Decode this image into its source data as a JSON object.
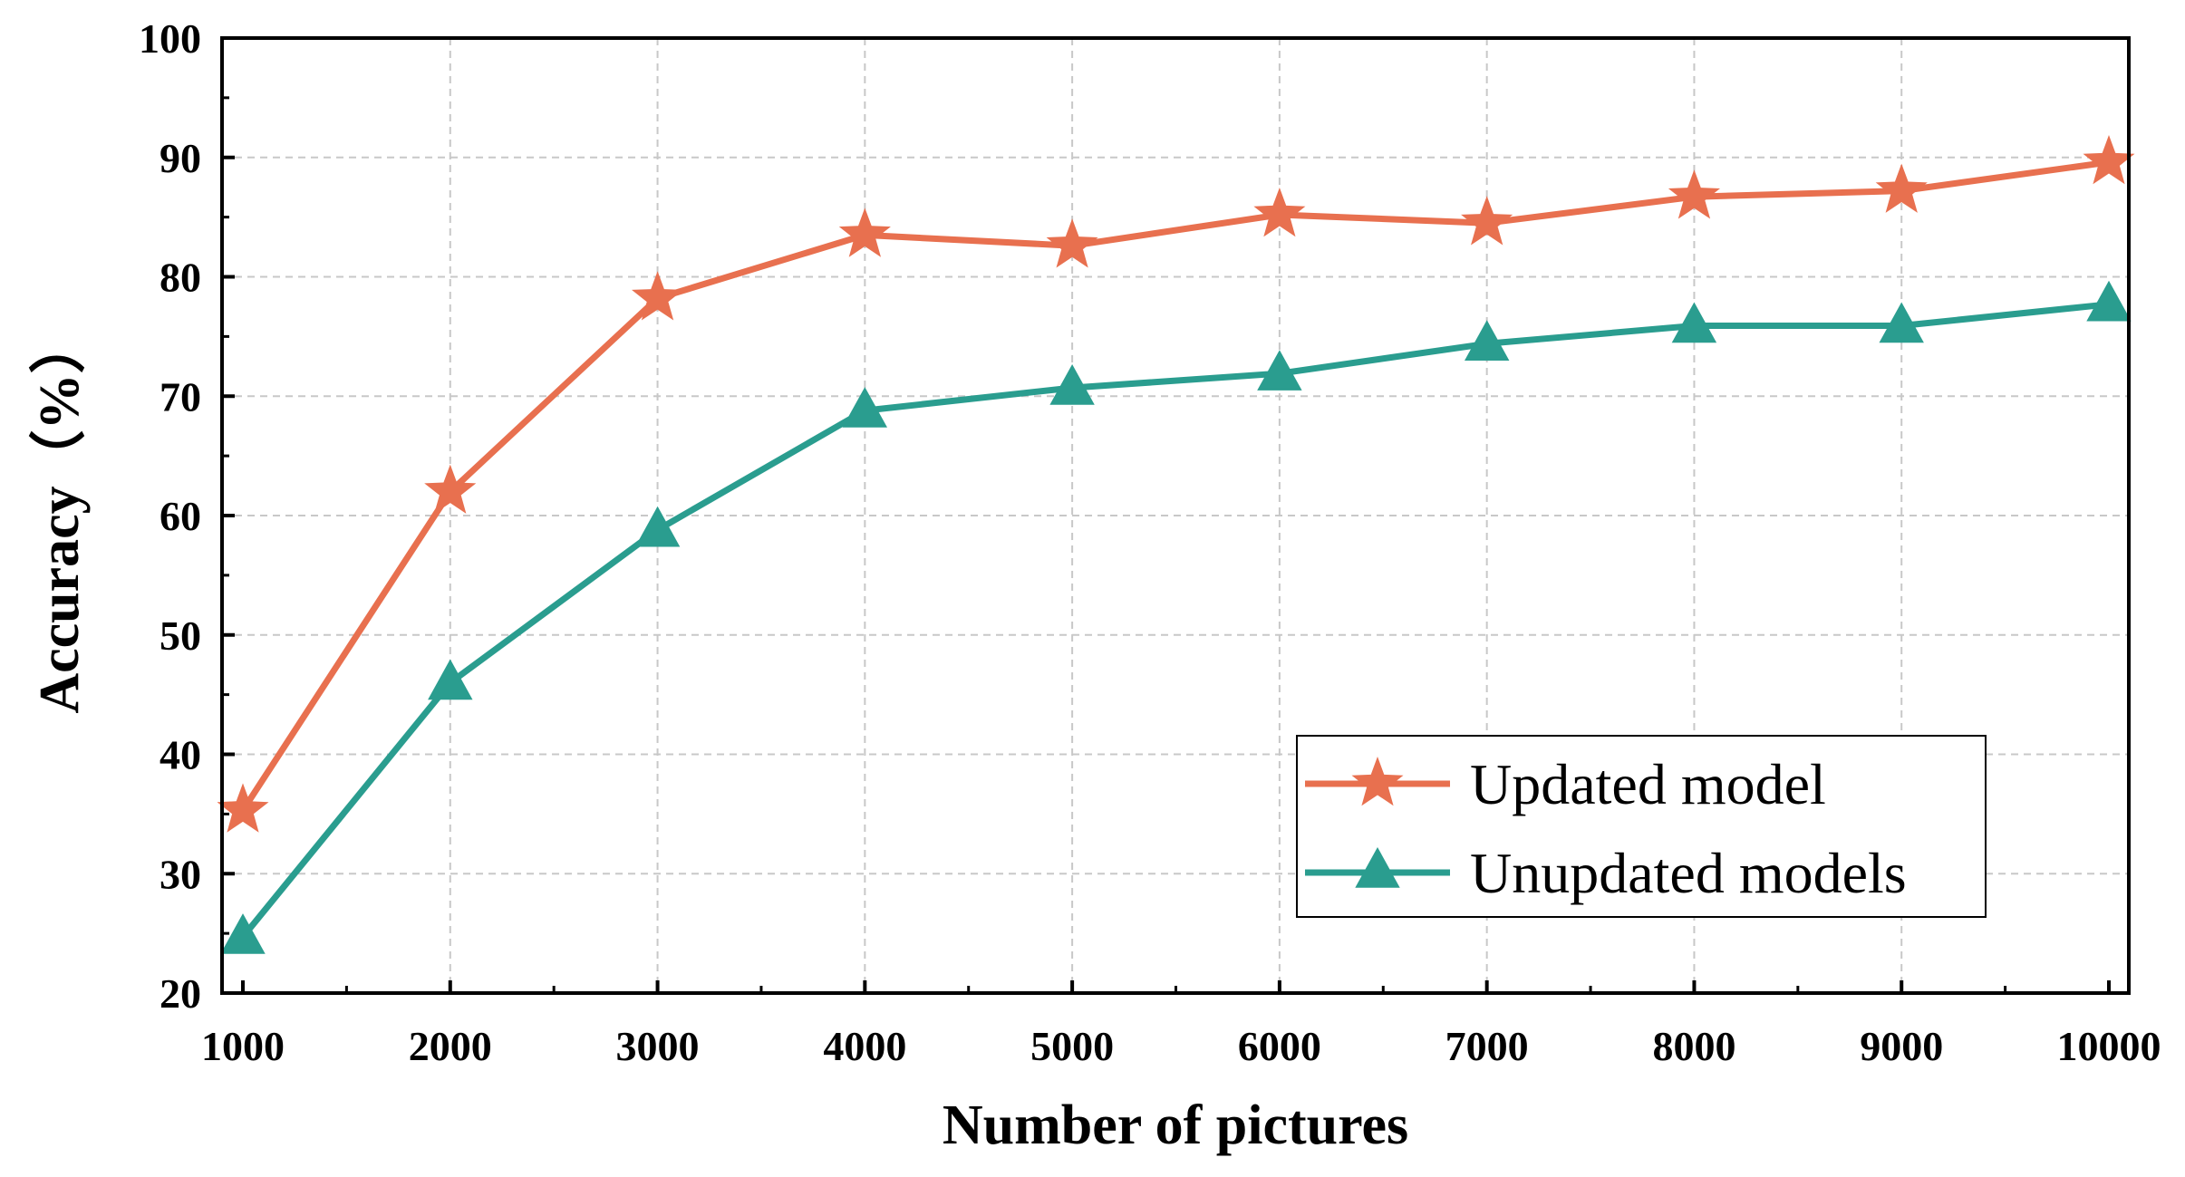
{
  "chart_data": {
    "type": "line",
    "title": "",
    "xlabel": "Number of pictures",
    "ylabel": "Accuracy（%）",
    "x": [
      1000,
      2000,
      3000,
      4000,
      5000,
      6000,
      7000,
      8000,
      9000,
      10000
    ],
    "xticks": [
      "1000",
      "2000",
      "3000",
      "4000",
      "5000",
      "6000",
      "7000",
      "8000",
      "9000",
      "10000"
    ],
    "ylim": [
      20,
      100
    ],
    "yticks": [
      "20",
      "30",
      "40",
      "50",
      "60",
      "70",
      "80",
      "90",
      "100"
    ],
    "grid": true,
    "legend_position": "bottom-right",
    "series": [
      {
        "name": "Updated model",
        "marker": "star",
        "color": "#E8704F",
        "values": [
          35.3,
          62.0,
          78.2,
          83.5,
          82.6,
          85.2,
          84.5,
          86.7,
          87.2,
          89.6
        ]
      },
      {
        "name": "Unupdated models",
        "marker": "triangle",
        "color": "#2A9D8F",
        "values": [
          24.7,
          46.0,
          58.8,
          68.8,
          70.7,
          71.9,
          74.4,
          75.9,
          75.9,
          77.7
        ]
      }
    ]
  }
}
